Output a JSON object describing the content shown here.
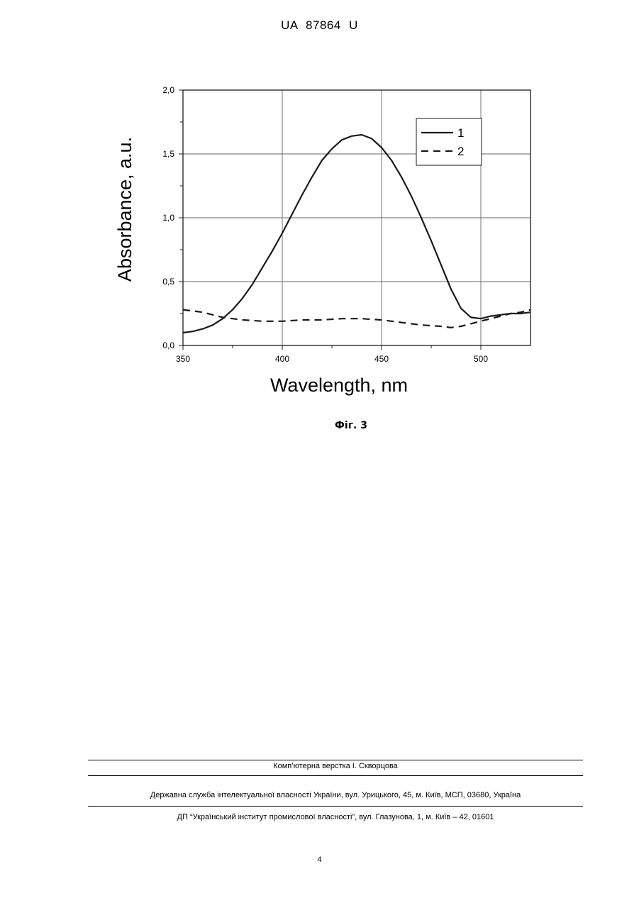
{
  "header": {
    "doc_id": "UA   87864   U"
  },
  "figure": {
    "caption": "Фіг. 3"
  },
  "chart_data": {
    "type": "line",
    "xlabel": "Wavelength, nm",
    "ylabel": "Absorbance, a.u.",
    "xlim": [
      350,
      525
    ],
    "ylim": [
      0,
      2.0
    ],
    "xticks": [
      350,
      400,
      450,
      500
    ],
    "xtick_labels": [
      "350",
      "400",
      "450",
      "500"
    ],
    "yticks": [
      0,
      0.5,
      1.0,
      1.5,
      2.0
    ],
    "ytick_labels": [
      "0,0",
      "0,5",
      "1,0",
      "1,5",
      "2,0"
    ],
    "grid": true,
    "legend_position": "top-right",
    "series": [
      {
        "name": "1",
        "style": "solid",
        "x": [
          350,
          355,
          360,
          365,
          370,
          375,
          380,
          385,
          390,
          395,
          400,
          405,
          410,
          415,
          420,
          425,
          430,
          435,
          440,
          445,
          450,
          455,
          460,
          465,
          470,
          475,
          480,
          485,
          490,
          495,
          500,
          505,
          510,
          515,
          520,
          525
        ],
        "y": [
          0.1,
          0.11,
          0.13,
          0.16,
          0.21,
          0.28,
          0.37,
          0.48,
          0.61,
          0.74,
          0.88,
          1.03,
          1.18,
          1.32,
          1.45,
          1.54,
          1.61,
          1.64,
          1.65,
          1.62,
          1.55,
          1.45,
          1.32,
          1.17,
          1.0,
          0.82,
          0.63,
          0.44,
          0.29,
          0.22,
          0.21,
          0.23,
          0.24,
          0.25,
          0.25,
          0.26
        ]
      },
      {
        "name": "2",
        "style": "dashed",
        "x": [
          350,
          355,
          360,
          365,
          370,
          375,
          380,
          390,
          400,
          410,
          420,
          430,
          440,
          450,
          460,
          470,
          480,
          485,
          490,
          495,
          500,
          505,
          510,
          515,
          520,
          525
        ],
        "y": [
          0.28,
          0.27,
          0.26,
          0.24,
          0.22,
          0.21,
          0.2,
          0.19,
          0.19,
          0.2,
          0.2,
          0.21,
          0.21,
          0.2,
          0.18,
          0.16,
          0.15,
          0.14,
          0.15,
          0.17,
          0.19,
          0.21,
          0.23,
          0.25,
          0.26,
          0.28
        ]
      }
    ]
  },
  "footer": {
    "layout_credit": "Комп’ютерна верстка І. Скворцова",
    "publisher_address": "Державна служба інтелектуальної власності України, вул. Урицького, 45, м. Київ, МСП, 03680, Україна",
    "institute_address": "ДП “Український інститут промислової власності”, вул. Глазунова, 1, м. Київ – 42, 01601",
    "page_number": "4"
  },
  "colors": {
    "line": "#1a1a1a",
    "grid": "#666666"
  }
}
